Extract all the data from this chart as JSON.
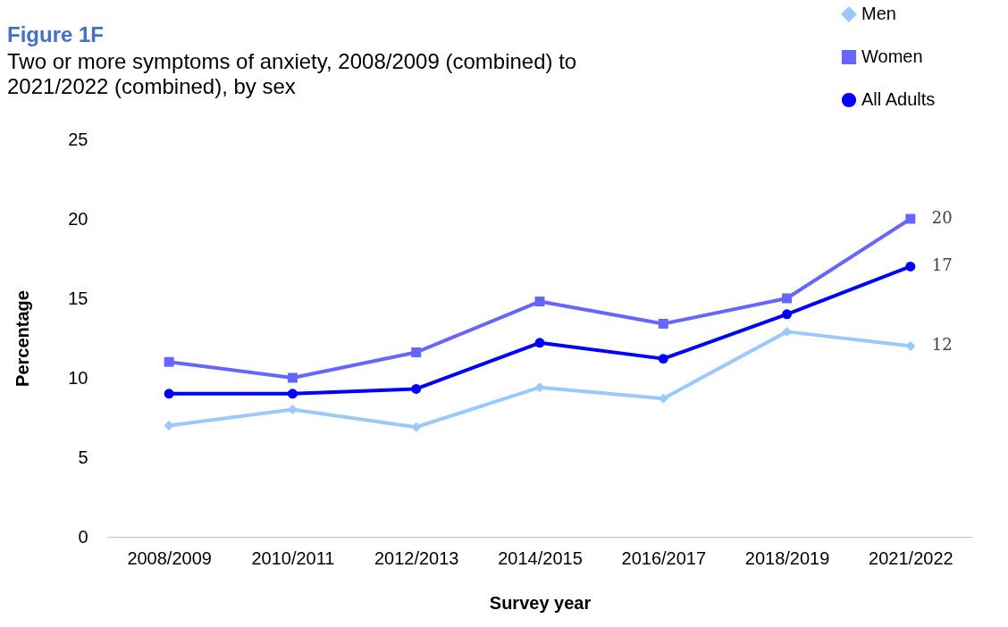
{
  "chart_data": {
    "type": "line",
    "title": "Figure 1F",
    "subtitle": "Two or more symptoms of anxiety, 2008/2009 (combined) to 2021/2022 (combined), by sex",
    "xlabel": "Survey year",
    "ylabel": "Percentage",
    "categories": [
      "2008/2009",
      "2010/2011",
      "2012/2013",
      "2014/2015",
      "2016/2017",
      "2018/2019",
      "2021/2022"
    ],
    "series": [
      {
        "name": "Men",
        "color": "#99c9ff",
        "marker": "diamond",
        "values": [
          7,
          8,
          6.9,
          9.4,
          8.7,
          12.9,
          12
        ],
        "value_labels": [
          null,
          null,
          null,
          null,
          null,
          null,
          "12"
        ]
      },
      {
        "name": "Women",
        "color": "#6666ff",
        "marker": "square",
        "values": [
          11,
          10,
          11.6,
          14.8,
          13.4,
          15,
          20
        ],
        "value_labels": [
          null,
          null,
          null,
          null,
          null,
          null,
          "20"
        ]
      },
      {
        "name": "All Adults",
        "color": "#0000ff",
        "marker": "circle",
        "values": [
          9,
          9,
          9.3,
          12.2,
          11.2,
          14,
          17
        ],
        "value_labels": [
          null,
          null,
          null,
          null,
          null,
          null,
          "17"
        ]
      }
    ],
    "ylim": [
      0,
      25
    ],
    "yticks": [
      0,
      5,
      10,
      15,
      20,
      25
    ],
    "grid": false,
    "legend": "top right"
  }
}
